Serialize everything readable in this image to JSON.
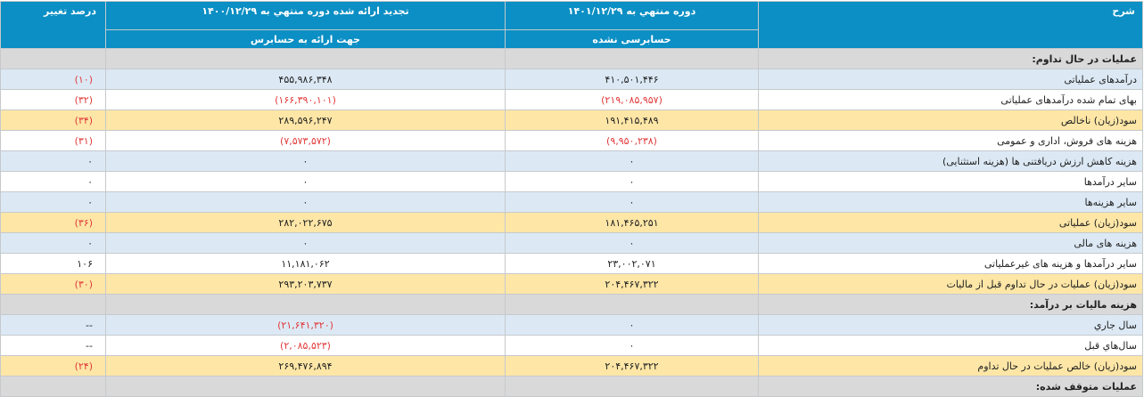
{
  "header": {
    "col_desc": "شرح",
    "col_current": "دوره منتهي به ۱۴۰۱/۱۲/۲۹",
    "col_current_sub": "حسابرسی نشده",
    "col_previous": "تجدید ارائه شده دوره منتهي به ۱۴۰۰/۱۲/۲۹",
    "col_previous_sub": "جهت ارائه به حسابرس",
    "col_change": "درصد تغییر"
  },
  "rows": [
    {
      "type": "section",
      "label": "عملیات در حال تداوم:",
      "current": "",
      "previous": "",
      "change": ""
    },
    {
      "type": "blue",
      "label": "درآمدهای عملیاتی",
      "current": "۴۱۰,۵۰۱,۴۴۶",
      "previous": "۴۵۵,۹۸۶,۳۴۸",
      "change": "(۱۰)",
      "current_neg": false,
      "previous_neg": false,
      "change_neg": true
    },
    {
      "type": "white",
      "label": "بهای تمام شده درآمدهای عملیاتی",
      "current": "(۲۱۹,۰۸۵,۹۵۷)",
      "previous": "(۱۶۶,۳۹۰,۱۰۱)",
      "change": "(۳۲)",
      "current_neg": true,
      "previous_neg": true,
      "change_neg": true
    },
    {
      "type": "gold",
      "label": "سود(زیان) ناخالص",
      "current": "۱۹۱,۴۱۵,۴۸۹",
      "previous": "۲۸۹,۵۹۶,۲۴۷",
      "change": "(۳۴)",
      "current_neg": false,
      "previous_neg": false,
      "change_neg": true
    },
    {
      "type": "white",
      "label": "هزینه های فروش، اداری و عمومی",
      "current": "(۹,۹۵۰,۲۳۸)",
      "previous": "(۷,۵۷۳,۵۷۲)",
      "change": "(۳۱)",
      "current_neg": true,
      "previous_neg": true,
      "change_neg": true
    },
    {
      "type": "blue",
      "label": "هزینه کاهش ارزش دریافتنی ها (هزینه استثنایی)",
      "current": "۰",
      "previous": "۰",
      "change": "۰",
      "current_neg": false,
      "previous_neg": false,
      "change_neg": false
    },
    {
      "type": "white",
      "label": "سایر درآمدها",
      "current": "۰",
      "previous": "۰",
      "change": "۰",
      "current_neg": false,
      "previous_neg": false,
      "change_neg": false
    },
    {
      "type": "blue",
      "label": "سایر هزینه‌ها",
      "current": "۰",
      "previous": "۰",
      "change": "۰",
      "current_neg": false,
      "previous_neg": false,
      "change_neg": false
    },
    {
      "type": "gold",
      "label": "سود(زیان) عملیاتی",
      "current": "۱۸۱,۴۶۵,۲۵۱",
      "previous": "۲۸۲,۰۲۲,۶۷۵",
      "change": "(۳۶)",
      "current_neg": false,
      "previous_neg": false,
      "change_neg": true
    },
    {
      "type": "blue",
      "label": "هزینه های مالی",
      "current": "۰",
      "previous": "۰",
      "change": "۰",
      "current_neg": false,
      "previous_neg": false,
      "change_neg": false
    },
    {
      "type": "white",
      "label": "سایر درآمدها و هزینه های غیرعملیاتی",
      "current": "۲۳,۰۰۲,۰۷۱",
      "previous": "۱۱,۱۸۱,۰۶۲",
      "change": "۱۰۶",
      "current_neg": false,
      "previous_neg": false,
      "change_neg": false
    },
    {
      "type": "gold",
      "label": "سود(زیان) عملیات در حال تداوم قبل از مالیات",
      "current": "۲۰۴,۴۶۷,۳۲۲",
      "previous": "۲۹۳,۲۰۳,۷۳۷",
      "change": "(۳۰)",
      "current_neg": false,
      "previous_neg": false,
      "change_neg": true
    },
    {
      "type": "section",
      "label": "هزینه مالیات بر درآمد:",
      "current": "",
      "previous": "",
      "change": ""
    },
    {
      "type": "blue",
      "label": "سال جاري",
      "current": "۰",
      "previous": "(۲۱,۶۴۱,۳۲۰)",
      "change": "--",
      "current_neg": false,
      "previous_neg": true,
      "change_neg": false
    },
    {
      "type": "white",
      "label": "سال‌هاي قبل",
      "current": "۰",
      "previous": "(۲,۰۸۵,۵۲۳)",
      "change": "--",
      "current_neg": false,
      "previous_neg": true,
      "change_neg": false
    },
    {
      "type": "gold",
      "label": "سود(زیان) خالص عملیات در حال تداوم",
      "current": "۲۰۴,۴۶۷,۳۲۲",
      "previous": "۲۶۹,۴۷۶,۸۹۴",
      "change": "(۲۴)",
      "current_neg": false,
      "previous_neg": false,
      "change_neg": true
    },
    {
      "type": "section",
      "label": "عملیات متوقف شده:",
      "current": "",
      "previous": "",
      "change": ""
    }
  ]
}
